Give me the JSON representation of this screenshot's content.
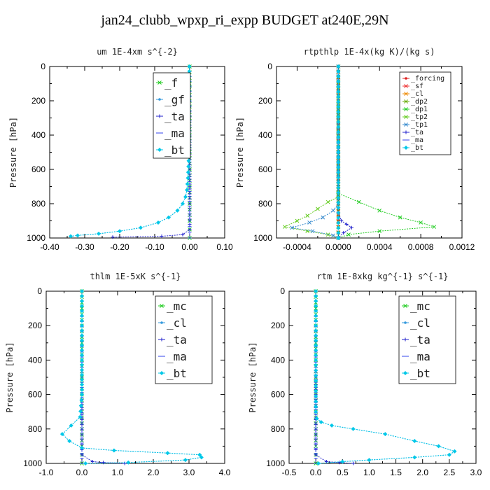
{
  "title": "jan24_clubb_wpxp_ri_expp  BUDGET at240E,29N",
  "colors": {
    "f": "#22cc22",
    "gf": "#3399dd",
    "ta": "#2222cc",
    "ma": "#3344ee",
    "bt": "#00c8e8",
    "forcing": "#dd2222",
    "sf": "#ee3333",
    "cl": "#ee8800",
    "dp2": "#66aa00",
    "dp1": "#22cc22",
    "tp2": "#66cc22",
    "tp1": "#3388cc",
    "mc": "#22cc22",
    "cl_blue": "#3399dd"
  },
  "chart_data": [
    {
      "type": "line",
      "title": "um   1E-4xm s^{-2}",
      "ylabel": "Pressure [hPa]",
      "xlim": [
        -0.4,
        0.1
      ],
      "ylim": [
        1000,
        0
      ],
      "xticks": [
        "-0.40",
        "-0.30",
        "-0.20",
        "-0.10",
        "0.00",
        "0.10"
      ],
      "xtick_values": [
        -0.4,
        -0.3,
        -0.2,
        -0.1,
        0.0,
        0.1
      ],
      "yticks": [
        "0",
        "200",
        "400",
        "600",
        "800",
        "1000"
      ],
      "ytick_values": [
        0,
        200,
        400,
        600,
        800,
        1000
      ],
      "legend_font": 16,
      "legend": [
        "_f",
        "_gf",
        "_ta",
        "_ma",
        "_bt"
      ],
      "series": [
        {
          "name": "_f",
          "color_key": "f",
          "marker": "x",
          "x": [
            0,
            0,
            0,
            0,
            0,
            0,
            0,
            0,
            0,
            0,
            0,
            0
          ],
          "y": [
            0,
            100,
            200,
            300,
            400,
            500,
            600,
            700,
            800,
            900,
            950,
            1000
          ]
        },
        {
          "name": "_gf",
          "color_key": "gf",
          "marker": "dot",
          "x": [
            -0.001,
            -0.001,
            -0.002,
            -0.003,
            -0.005,
            -0.008,
            -0.012,
            -0.02,
            -0.035,
            -0.06,
            -0.09,
            -0.14,
            -0.2,
            -0.26,
            -0.32,
            -0.34
          ],
          "y": [
            0,
            200,
            400,
            550,
            650,
            720,
            760,
            800,
            840,
            880,
            910,
            940,
            960,
            975,
            985,
            990
          ]
        },
        {
          "name": "_ta",
          "color_key": "ta",
          "marker": "plus",
          "x": [
            0,
            0,
            0,
            0,
            -0.02,
            -0.08,
            -0.22
          ],
          "y": [
            0,
            400,
            800,
            950,
            980,
            990,
            995
          ]
        },
        {
          "name": "_ma",
          "color_key": "ma",
          "marker": "dash",
          "x": [
            0,
            0,
            0,
            0
          ],
          "y": [
            0,
            500,
            900,
            1000
          ]
        },
        {
          "name": "_bt",
          "color_key": "bt",
          "marker": "diamond",
          "x": [
            -0.001,
            -0.001,
            -0.002,
            -0.003,
            -0.005,
            -0.008,
            -0.012,
            -0.02,
            -0.035,
            -0.06,
            -0.09,
            -0.14,
            -0.2,
            -0.26,
            -0.32,
            -0.34
          ],
          "y": [
            0,
            200,
            400,
            550,
            650,
            720,
            760,
            800,
            840,
            880,
            910,
            940,
            960,
            975,
            985,
            990
          ]
        }
      ]
    },
    {
      "type": "line",
      "title": "rtpthlp   1E-4x(kg K)/(kg s)",
      "ylabel": "Pressure [hPa]",
      "xlim": [
        -0.0006,
        0.0012
      ],
      "ylim": [
        1000,
        0
      ],
      "xticks": [
        "-0.0004",
        "0.0000",
        "0.0004",
        "0.0008",
        "0.0012"
      ],
      "xtick_values": [
        -0.0004,
        0.0,
        0.0004,
        0.0008,
        0.0012
      ],
      "yticks": [
        "0",
        "200",
        "400",
        "600",
        "800",
        "1000"
      ],
      "ytick_values": [
        0,
        200,
        400,
        600,
        800,
        1000
      ],
      "legend_font": 10,
      "legend": [
        "_forcing",
        "_sf",
        "_cl",
        "_dp2",
        "_dp1",
        "_tp2",
        "_tp1",
        "_ta",
        "_ma",
        "_bt"
      ],
      "series": [
        {
          "name": "_forcing",
          "color_key": "forcing",
          "marker": "dot",
          "x": [
            0,
            0,
            0,
            0,
            0,
            0,
            0,
            0,
            0,
            0,
            0
          ],
          "y": [
            0,
            100,
            200,
            300,
            400,
            500,
            600,
            700,
            800,
            900,
            1000
          ]
        },
        {
          "name": "_sf",
          "color_key": "sf",
          "marker": "x",
          "x": [
            0,
            0,
            0,
            0,
            0,
            0,
            0,
            0,
            0,
            0,
            0
          ],
          "y": [
            0,
            100,
            200,
            300,
            400,
            500,
            600,
            700,
            800,
            900,
            1000
          ]
        },
        {
          "name": "_cl",
          "color_key": "cl",
          "marker": "x",
          "x": [
            0,
            0,
            0,
            0,
            0
          ],
          "y": [
            0,
            250,
            500,
            750,
            1000
          ]
        },
        {
          "name": "_dp2",
          "color_key": "dp2",
          "marker": "x",
          "x": [
            0,
            0,
            0,
            0,
            0
          ],
          "y": [
            0,
            250,
            500,
            750,
            1000
          ]
        },
        {
          "name": "_dp1",
          "color_key": "dp1",
          "marker": "x",
          "x": [
            0,
            0,
            0,
            0.0002,
            0.0004,
            0.0006,
            0.0008,
            0.00093,
            0.0004,
            0.0001,
            0
          ],
          "y": [
            0,
            700,
            740,
            790,
            840,
            880,
            910,
            935,
            960,
            980,
            1000
          ]
        },
        {
          "name": "_tp2",
          "color_key": "tp2",
          "marker": "x",
          "x": [
            0,
            0,
            -0.0001,
            -0.0002,
            -0.0003,
            -0.0004,
            -0.00052,
            -0.0003,
            -0.0001,
            0
          ],
          "y": [
            0,
            760,
            790,
            830,
            870,
            900,
            935,
            960,
            980,
            1000
          ]
        },
        {
          "name": "_tp1",
          "color_key": "tp1",
          "marker": "x",
          "x": [
            0,
            0,
            -5e-05,
            -0.00015,
            -0.00028,
            -0.00045,
            -0.00025,
            -5e-05,
            0
          ],
          "y": [
            0,
            800,
            840,
            880,
            910,
            940,
            960,
            985,
            1000
          ]
        },
        {
          "name": "_ta",
          "color_key": "ta",
          "marker": "plus",
          "x": [
            0,
            0,
            3e-05,
            8e-05,
            0.00013,
            5e-05,
            0
          ],
          "y": [
            0,
            850,
            900,
            920,
            940,
            970,
            1000
          ]
        },
        {
          "name": "_ma",
          "color_key": "ma",
          "marker": "dash",
          "x": [
            0,
            0,
            0
          ],
          "y": [
            0,
            500,
            1000
          ]
        },
        {
          "name": "_bt",
          "color_key": "bt",
          "marker": "diamond",
          "x": [
            0,
            0,
            0
          ],
          "y": [
            0,
            500,
            1000
          ]
        }
      ]
    },
    {
      "type": "line",
      "title": "thlm   1E-5xK s^{-1}",
      "ylabel": "Pressure [hPa]",
      "xlim": [
        -1.0,
        4.0
      ],
      "ylim": [
        1000,
        0
      ],
      "xticks": [
        "-1.0",
        "0.0",
        "1.0",
        "2.0",
        "3.0",
        "4.0"
      ],
      "xtick_values": [
        -1.0,
        0.0,
        1.0,
        2.0,
        3.0,
        4.0
      ],
      "yticks": [
        "0",
        "200",
        "400",
        "600",
        "800",
        "1000"
      ],
      "ytick_values": [
        0,
        200,
        400,
        600,
        800,
        1000
      ],
      "legend_font": 16,
      "legend": [
        "_mc",
        "_cl",
        "_ta",
        "_ma",
        "_bt"
      ],
      "series": [
        {
          "name": "_mc",
          "color_key": "mc",
          "marker": "x",
          "x": [
            0,
            0,
            0,
            0,
            0,
            0,
            0,
            0,
            0,
            0,
            0,
            0
          ],
          "y": [
            0,
            100,
            200,
            300,
            400,
            500,
            600,
            700,
            800,
            900,
            950,
            1000
          ]
        },
        {
          "name": "_cl",
          "color_key": "cl_blue",
          "marker": "dot",
          "x": [
            0,
            0,
            0,
            -0.05,
            -0.3,
            -0.55,
            -0.35,
            0.0,
            0.9,
            2.4,
            3.3,
            3.35,
            2.9,
            1.3,
            0.1
          ],
          "y": [
            0,
            200,
            600,
            730,
            780,
            830,
            870,
            910,
            925,
            940,
            950,
            965,
            980,
            995,
            1000
          ]
        },
        {
          "name": "_ta",
          "color_key": "ta",
          "marker": "plus",
          "x": [
            0,
            0,
            0,
            0.3,
            0.6,
            1.2
          ],
          "y": [
            0,
            600,
            950,
            990,
            995,
            1000
          ]
        },
        {
          "name": "_ma",
          "color_key": "ma",
          "marker": "dash",
          "x": [
            0,
            0,
            0
          ],
          "y": [
            0,
            500,
            1000
          ]
        },
        {
          "name": "_bt",
          "color_key": "bt",
          "marker": "diamond",
          "x": [
            0,
            0,
            0,
            -0.05,
            -0.3,
            -0.55,
            -0.35,
            0.0,
            0.9,
            2.4,
            3.3,
            3.35,
            2.9,
            1.3,
            0.1
          ],
          "y": [
            0,
            200,
            600,
            730,
            780,
            830,
            870,
            910,
            925,
            940,
            950,
            965,
            980,
            995,
            1000
          ]
        }
      ]
    },
    {
      "type": "line",
      "title": "rtm   1E-8xkg kg^{-1} s^{-1}",
      "ylabel": "Pressure [hPa]",
      "xlim": [
        -0.5,
        3.0
      ],
      "ylim": [
        1000,
        0
      ],
      "xticks": [
        "-0.5",
        "0.0",
        "0.5",
        "1.0",
        "1.5",
        "2.0",
        "2.5",
        "3.0"
      ],
      "xtick_values": [
        -0.5,
        0.0,
        0.5,
        1.0,
        1.5,
        2.0,
        2.5,
        3.0
      ],
      "yticks": [
        "0",
        "200",
        "400",
        "600",
        "800",
        "1000"
      ],
      "ytick_values": [
        0,
        200,
        400,
        600,
        800,
        1000
      ],
      "legend_font": 16,
      "legend": [
        "_mc",
        "_cl",
        "_ta",
        "_ma",
        "_bt"
      ],
      "series": [
        {
          "name": "_mc",
          "color_key": "mc",
          "marker": "x",
          "x": [
            0,
            0,
            0,
            0,
            0,
            0,
            0,
            0,
            0,
            0,
            0,
            0
          ],
          "y": [
            0,
            100,
            200,
            300,
            400,
            500,
            600,
            700,
            800,
            900,
            950,
            1000
          ]
        },
        {
          "name": "_cl",
          "color_key": "cl_blue",
          "marker": "dot",
          "x": [
            0,
            0,
            0,
            0.02,
            0.1,
            0.3,
            0.7,
            1.3,
            1.85,
            2.3,
            2.6,
            2.5,
            1.85,
            1.0,
            0.5,
            0.05
          ],
          "y": [
            0,
            400,
            700,
            740,
            760,
            780,
            800,
            830,
            870,
            900,
            930,
            950,
            965,
            980,
            990,
            1000
          ]
        },
        {
          "name": "_ta",
          "color_key": "ta",
          "marker": "plus",
          "x": [
            0,
            0,
            0,
            0.2,
            0.45,
            0.7
          ],
          "y": [
            0,
            600,
            950,
            990,
            995,
            1000
          ]
        },
        {
          "name": "_ma",
          "color_key": "ma",
          "marker": "dash",
          "x": [
            0,
            0,
            0
          ],
          "y": [
            0,
            500,
            1000
          ]
        },
        {
          "name": "_bt",
          "color_key": "bt",
          "marker": "diamond",
          "x": [
            0,
            0,
            0,
            0.02,
            0.1,
            0.3,
            0.7,
            1.3,
            1.85,
            2.3,
            2.6,
            2.5,
            1.85,
            1.0,
            0.5,
            0.05
          ],
          "y": [
            0,
            400,
            700,
            740,
            760,
            780,
            800,
            830,
            870,
            900,
            930,
            950,
            965,
            980,
            990,
            1000
          ]
        }
      ]
    }
  ]
}
